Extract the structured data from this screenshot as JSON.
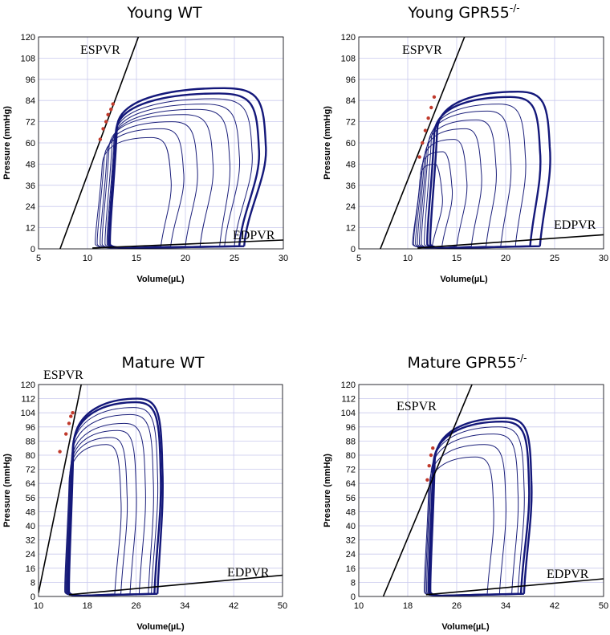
{
  "chart_data": [
    {
      "type": "line",
      "title": "Young WT",
      "xlabel": "Volume(µL)",
      "ylabel": "Pressure (mmHg)",
      "xlim": [
        5,
        30
      ],
      "ylim": [
        0,
        120
      ],
      "x_ticks": [
        "5",
        "10",
        "15",
        "20",
        "25",
        "30"
      ],
      "y_ticks": [
        "0",
        "12",
        "24",
        "36",
        "48",
        "60",
        "72",
        "84",
        "96",
        "108",
        "120"
      ],
      "grid": true,
      "annotations": [
        "ESPVR",
        "EDPVR"
      ],
      "espvr": {
        "x": [
          7.2,
          15.2
        ],
        "y": [
          0,
          120
        ]
      },
      "edpvr": {
        "x": [
          10.5,
          30
        ],
        "y": [
          0.5,
          5
        ]
      },
      "es_points": {
        "x": [
          11.3,
          11.6,
          11.9,
          12.1,
          12.4,
          12.6
        ],
        "y": [
          62,
          68,
          72,
          76,
          79,
          82
        ]
      },
      "pv_loops": [
        {
          "ved": 17.5,
          "vmax": 18.5,
          "pmax": 63,
          "ves": 11.3
        },
        {
          "ved": 18.5,
          "vmax": 19.8,
          "pmax": 68,
          "ves": 11.5
        },
        {
          "ved": 20,
          "vmax": 21.2,
          "pmax": 72,
          "ves": 11.8
        },
        {
          "ved": 21.5,
          "vmax": 22.8,
          "pmax": 76,
          "ves": 12.0
        },
        {
          "ved": 23.5,
          "vmax": 24.5,
          "pmax": 79,
          "ves": 12.3
        },
        {
          "ved": 24,
          "vmax": 25.5,
          "pmax": 82,
          "ves": 12.5
        },
        {
          "ved": 25,
          "vmax": 26.8,
          "pmax": 85,
          "ves": 12.6
        },
        {
          "ved": 25.5,
          "vmax": 27.5,
          "pmax": 88,
          "ves": 12.7
        },
        {
          "ved": 26,
          "vmax": 28.2,
          "pmax": 91,
          "ves": 12.8
        }
      ]
    },
    {
      "type": "line",
      "title": "Young GPR55",
      "title_sup": "-/-",
      "xlabel": "Volume(µL)",
      "ylabel": "Pressure (mmHg)",
      "xlim": [
        5,
        30
      ],
      "ylim": [
        0,
        120
      ],
      "x_ticks": [
        "5",
        "10",
        "15",
        "20",
        "25",
        "30"
      ],
      "y_ticks": [
        "0",
        "12",
        "24",
        "36",
        "48",
        "60",
        "72",
        "84",
        "96",
        "108",
        "120"
      ],
      "grid": true,
      "annotations": [
        "ESPVR",
        "EDPVR"
      ],
      "espvr": {
        "x": [
          7.2,
          15.8
        ],
        "y": [
          0,
          120
        ]
      },
      "edpvr": {
        "x": [
          11,
          30
        ],
        "y": [
          0.5,
          8
        ]
      },
      "es_points": {
        "x": [
          11.2,
          11.5,
          11.8,
          12.1,
          12.4,
          12.7
        ],
        "y": [
          52,
          60,
          67,
          74,
          80,
          86
        ]
      },
      "pv_loops": [
        {
          "ved": 12.5,
          "vmax": 13.5,
          "pmax": 48,
          "ves": 11.0
        },
        {
          "ved": 13.5,
          "vmax": 14.5,
          "pmax": 55,
          "ves": 11.1
        },
        {
          "ved": 15,
          "vmax": 16,
          "pmax": 62,
          "ves": 11.3
        },
        {
          "ved": 16.5,
          "vmax": 17.5,
          "pmax": 68,
          "ves": 11.5
        },
        {
          "ved": 18,
          "vmax": 19,
          "pmax": 73,
          "ves": 11.7
        },
        {
          "ved": 19.5,
          "vmax": 20.5,
          "pmax": 78,
          "ves": 11.9
        },
        {
          "ved": 21,
          "vmax": 22,
          "pmax": 82,
          "ves": 12.2
        },
        {
          "ved": 22.5,
          "vmax": 23.5,
          "pmax": 86,
          "ves": 12.5
        },
        {
          "ved": 23.5,
          "vmax": 24.5,
          "pmax": 89,
          "ves": 12.8
        }
      ]
    },
    {
      "type": "line",
      "title": "Mature WT",
      "xlabel": "Volume(µL)",
      "ylabel": "Pressure (mmHg)",
      "xlim": [
        10,
        50
      ],
      "ylim": [
        0,
        120
      ],
      "x_ticks": [
        "10",
        "18",
        "26",
        "34",
        "42",
        "50"
      ],
      "y_ticks": [
        "0",
        "8",
        "16",
        "24",
        "32",
        "40",
        "48",
        "56",
        "64",
        "72",
        "80",
        "88",
        "96",
        "104",
        "112",
        "120"
      ],
      "grid": true,
      "annotations": [
        "ESPVR",
        "EDPVR"
      ],
      "espvr": {
        "x": [
          10,
          17
        ],
        "y": [
          2,
          120
        ]
      },
      "edpvr": {
        "x": [
          15,
          50
        ],
        "y": [
          1,
          12
        ]
      },
      "es_points": {
        "x": [
          13.5,
          14.5,
          15.0,
          15.3,
          15.6
        ],
        "y": [
          82,
          92,
          98,
          102,
          104
        ]
      },
      "pv_loops": [
        {
          "ved": 22.5,
          "vmax": 23.5,
          "pmax": 86,
          "ves": 14.8
        },
        {
          "ved": 23.5,
          "vmax": 24.5,
          "pmax": 90,
          "ves": 14.9
        },
        {
          "ved": 25,
          "vmax": 26,
          "pmax": 94,
          "ves": 15.0
        },
        {
          "ved": 26.5,
          "vmax": 27.5,
          "pmax": 98,
          "ves": 15.1
        },
        {
          "ved": 28,
          "vmax": 28.8,
          "pmax": 103,
          "ves": 15.2
        },
        {
          "ved": 28.5,
          "vmax": 29.5,
          "pmax": 107,
          "ves": 15.3
        },
        {
          "ved": 29,
          "vmax": 30,
          "pmax": 110,
          "ves": 15.4
        },
        {
          "ved": 29.5,
          "vmax": 30.3,
          "pmax": 112,
          "ves": 15.5
        }
      ]
    },
    {
      "type": "line",
      "title": "Mature GPR55",
      "title_sup": "-/-",
      "xlabel": "Volume(µL)",
      "ylabel": "Pressure (mmHg)",
      "xlim": [
        10,
        50
      ],
      "ylim": [
        0,
        120
      ],
      "x_ticks": [
        "10",
        "18",
        "26",
        "34",
        "42",
        "50"
      ],
      "y_ticks": [
        "0",
        "8",
        "16",
        "24",
        "32",
        "40",
        "48",
        "56",
        "64",
        "72",
        "80",
        "88",
        "96",
        "104",
        "112",
        "120"
      ],
      "grid": true,
      "annotations": [
        "ESPVR",
        "EDPVR"
      ],
      "espvr": {
        "x": [
          14,
          28.5
        ],
        "y": [
          0,
          120
        ]
      },
      "edpvr": {
        "x": [
          21,
          50
        ],
        "y": [
          1,
          10
        ]
      },
      "es_points": {
        "x": [
          21.2,
          21.5,
          21.8,
          22.1
        ],
        "y": [
          66,
          74,
          80,
          84
        ]
      },
      "pv_loops": [
        {
          "ved": 31,
          "vmax": 32,
          "pmax": 79,
          "ves": 21.2
        },
        {
          "ved": 33,
          "vmax": 34,
          "pmax": 86,
          "ves": 21.4
        },
        {
          "ved": 35,
          "vmax": 36,
          "pmax": 92,
          "ves": 21.6
        },
        {
          "ved": 36,
          "vmax": 37,
          "pmax": 96,
          "ves": 21.8
        },
        {
          "ved": 36.5,
          "vmax": 37.8,
          "pmax": 99,
          "ves": 22.0
        },
        {
          "ved": 37,
          "vmax": 38.2,
          "pmax": 101,
          "ves": 22.2
        }
      ]
    }
  ]
}
